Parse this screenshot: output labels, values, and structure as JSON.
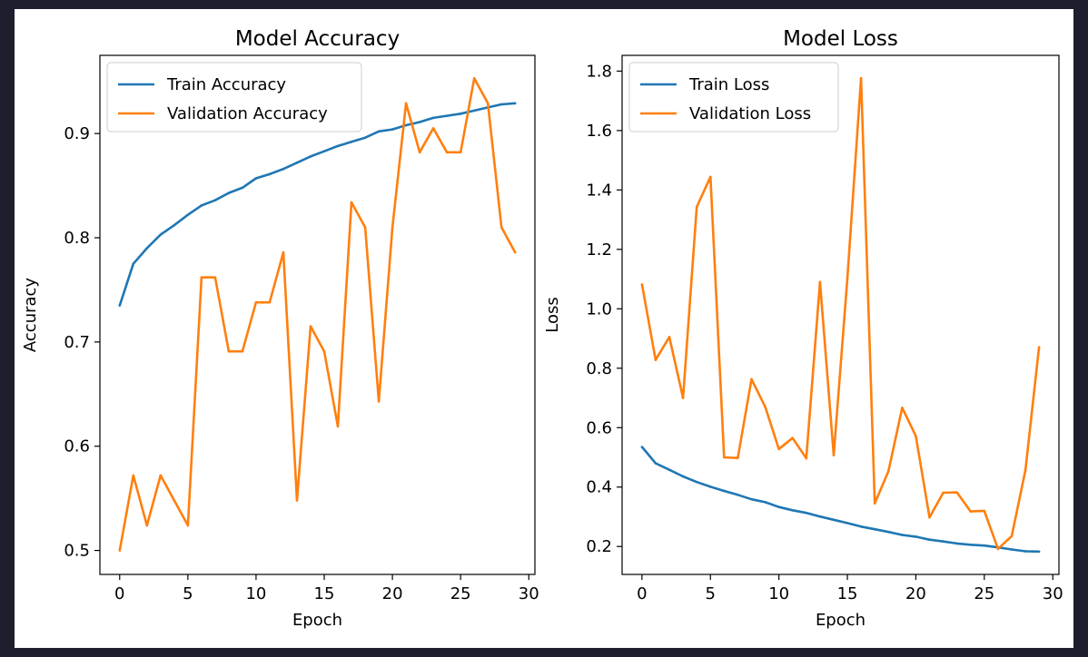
{
  "chart_data": [
    {
      "type": "line",
      "title": "Model Accuracy",
      "xlabel": "Epoch",
      "ylabel": "Accuracy",
      "xlim": [
        -1.45,
        30.45
      ],
      "ylim": [
        0.477,
        0.975
      ],
      "x_ticks": [
        0,
        5,
        10,
        15,
        20,
        25,
        30
      ],
      "y_ticks": [
        0.5,
        0.6,
        0.7,
        0.8,
        0.9
      ],
      "legend_position": "top-left",
      "grid": false,
      "x": [
        0,
        1,
        2,
        3,
        4,
        5,
        6,
        7,
        8,
        9,
        10,
        11,
        12,
        13,
        14,
        15,
        16,
        17,
        18,
        19,
        20,
        21,
        22,
        23,
        24,
        25,
        26,
        27,
        28,
        29
      ],
      "series": [
        {
          "name": "Train Accuracy",
          "color": "#1f77b4",
          "values": [
            0.735,
            0.775,
            0.79,
            0.803,
            0.812,
            0.822,
            0.831,
            0.836,
            0.843,
            0.848,
            0.857,
            0.861,
            0.866,
            0.872,
            0.878,
            0.883,
            0.888,
            0.892,
            0.896,
            0.902,
            0.904,
            0.908,
            0.911,
            0.915,
            0.917,
            0.919,
            0.922,
            0.925,
            0.928,
            0.929
          ]
        },
        {
          "name": "Validation Accuracy",
          "color": "#ff7f0e",
          "values": [
            0.5,
            0.572,
            0.524,
            0.572,
            0.548,
            0.524,
            0.762,
            0.762,
            0.691,
            0.691,
            0.738,
            0.738,
            0.786,
            0.548,
            0.715,
            0.691,
            0.619,
            0.834,
            0.81,
            0.643,
            0.81,
            0.929,
            0.882,
            0.905,
            0.882,
            0.882,
            0.953,
            0.929,
            0.81,
            0.786
          ]
        }
      ]
    },
    {
      "type": "line",
      "title": "Model Loss",
      "xlabel": "Epoch",
      "ylabel": "Loss",
      "xlim": [
        -1.45,
        30.45
      ],
      "ylim": [
        0.106,
        1.853
      ],
      "x_ticks": [
        0,
        5,
        10,
        15,
        20,
        25,
        30
      ],
      "y_ticks": [
        0.2,
        0.4,
        0.6,
        0.8,
        1.0,
        1.2,
        1.4,
        1.6,
        1.8
      ],
      "legend_position": "top-left",
      "grid": false,
      "x": [
        0,
        1,
        2,
        3,
        4,
        5,
        6,
        7,
        8,
        9,
        10,
        11,
        12,
        13,
        14,
        15,
        16,
        17,
        18,
        19,
        20,
        21,
        22,
        23,
        24,
        25,
        26,
        27,
        28,
        29
      ],
      "series": [
        {
          "name": "Train Loss",
          "color": "#1f77b4",
          "values": [
            0.535,
            0.48,
            0.458,
            0.436,
            0.417,
            0.401,
            0.387,
            0.374,
            0.359,
            0.349,
            0.333,
            0.322,
            0.313,
            0.301,
            0.29,
            0.279,
            0.267,
            0.258,
            0.249,
            0.239,
            0.233,
            0.223,
            0.217,
            0.21,
            0.206,
            0.203,
            0.197,
            0.19,
            0.184,
            0.183
          ]
        },
        {
          "name": "Validation Loss",
          "color": "#ff7f0e",
          "values": [
            1.082,
            0.828,
            0.905,
            0.7,
            1.343,
            1.444,
            0.5,
            0.498,
            0.763,
            0.67,
            0.528,
            0.565,
            0.497,
            1.09,
            0.507,
            1.1,
            1.776,
            0.345,
            0.454,
            0.667,
            0.572,
            0.298,
            0.381,
            0.382,
            0.318,
            0.32,
            0.192,
            0.235,
            0.457,
            0.871
          ]
        }
      ]
    }
  ]
}
